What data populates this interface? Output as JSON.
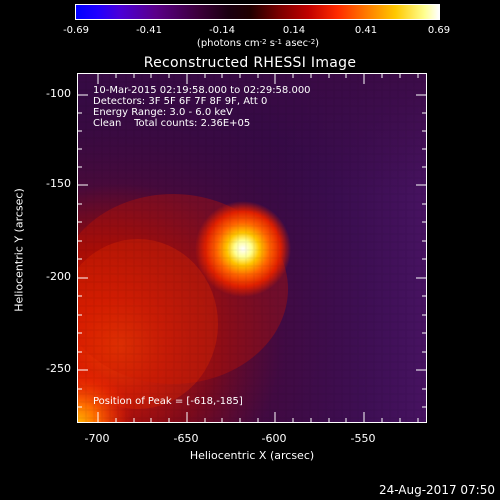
{
  "colorbar": {
    "ticks": [
      "-0.69",
      "-0.41",
      "-0.14",
      "0.14",
      "0.41",
      "0.69"
    ],
    "units_main": "(photons cm",
    "units_exp1": "-2",
    "units_mid": " s",
    "units_exp2": "-1",
    "units_mid2": " asec",
    "units_exp3": "-2",
    "units_end": ")"
  },
  "title": "Reconstructed RHESSI Image",
  "info": {
    "time_range": "10-Mar-2015 02:19:58.000 to 02:29:58.000",
    "detectors": "Detectors: 3F 5F 6F 7F 8F 9F, Att 0",
    "energy": "Energy Range: 3.0 - 6.0 keV",
    "clean": "Clean    Total counts: 2.36E+05",
    "peak": "Position of Peak = [-618,-185]"
  },
  "axes": {
    "x_title": "Heliocentric X (arcsec)",
    "y_title": "Heliocentric Y (arcsec)",
    "x_ticks": [
      "-700",
      "-650",
      "-600",
      "-550"
    ],
    "y_ticks": [
      "-100",
      "-150",
      "-200",
      "-250"
    ]
  },
  "timestamp": "24-Aug-2017 07:50"
}
